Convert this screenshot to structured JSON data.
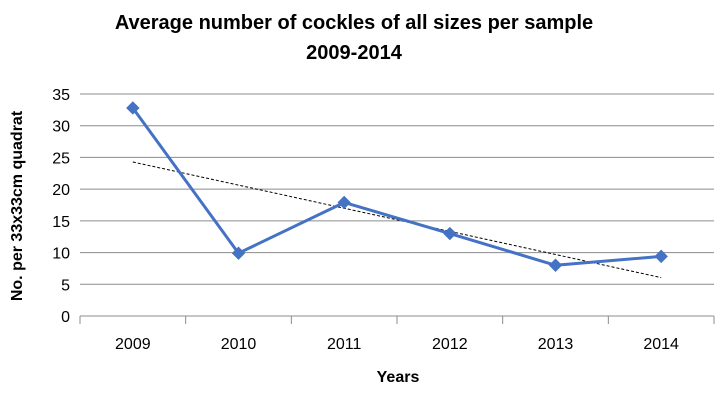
{
  "chart_data": {
    "type": "line",
    "title_line1": "Average number of cockles of all sizes per sample",
    "title_line2": "2009-2014",
    "xlabel": "Years",
    "ylabel": "No. per 33x33cm quadrat",
    "categories": [
      "2009",
      "2010",
      "2011",
      "2012",
      "2013",
      "2014"
    ],
    "series": [
      {
        "values": [
          32.8,
          9.9,
          17.9,
          13.0,
          8.0,
          9.4
        ],
        "color": "#4472c4",
        "marker": "diamond"
      }
    ],
    "trendline": {
      "type": "linear",
      "style": "dashed",
      "color": "#000000"
    },
    "ylim": [
      0,
      35
    ],
    "yticks": [
      "0",
      "5",
      "10",
      "15",
      "20",
      "25",
      "30",
      "35"
    ],
    "grid": true,
    "legend": "none"
  }
}
